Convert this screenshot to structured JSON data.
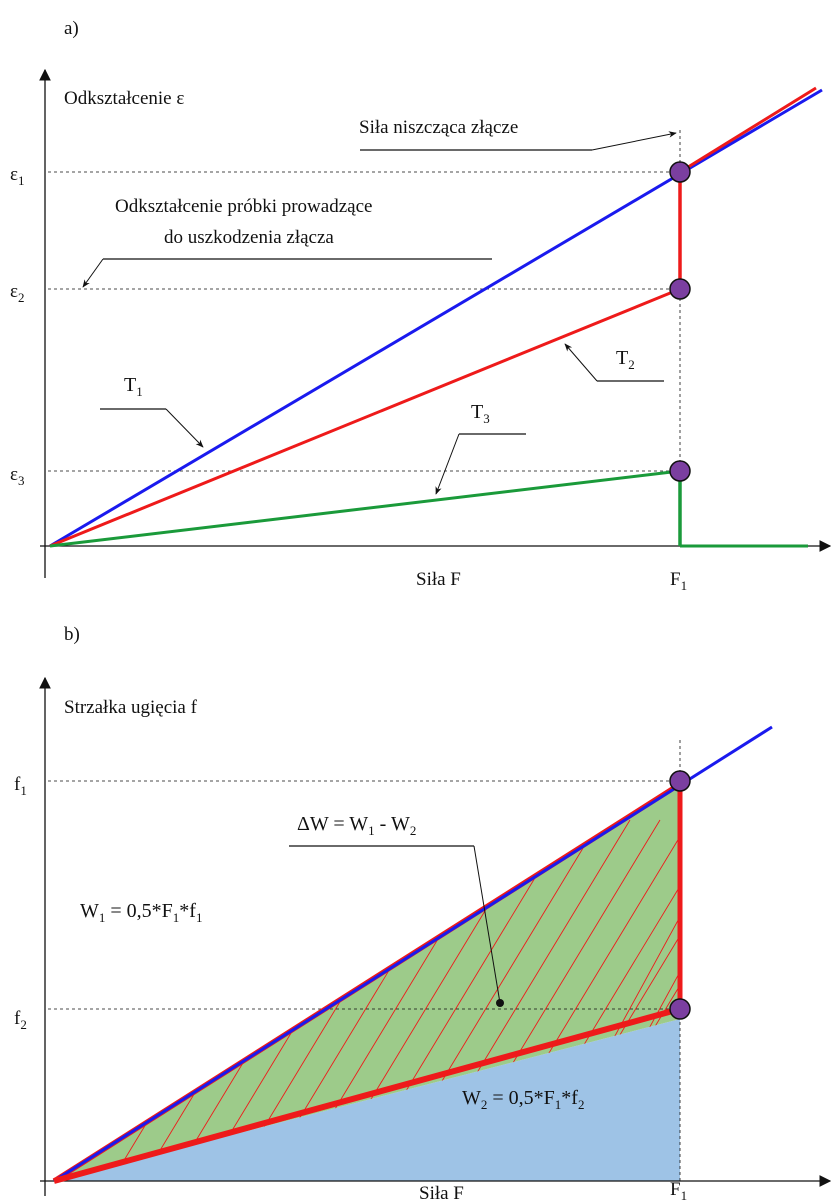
{
  "panel_a": {
    "label": "a)",
    "y_axis_label": "Odkształcenie ε",
    "x_axis_label": "Siła F",
    "x_tick": {
      "main": "F",
      "sub": "1"
    },
    "y_ticks": [
      {
        "main": "ε",
        "sub": "1"
      },
      {
        "main": "ε",
        "sub": "2"
      },
      {
        "main": "ε",
        "sub": "3"
      }
    ],
    "annotations": {
      "breaking_force": "Siła niszcząca złącze",
      "deformation_line1": "Odkształcenie próbki prowadzące",
      "deformation_line2": "do uszkodzenia złącza"
    },
    "series": [
      {
        "main": "T",
        "sub": "1",
        "color": "#1a1aee"
      },
      {
        "main": "T",
        "sub": "2",
        "color": "#ee1a1a"
      },
      {
        "main": "T",
        "sub": "3",
        "color": "#1a9a3a"
      }
    ],
    "marker_color": "#7b3fa0"
  },
  "panel_b": {
    "label": "b)",
    "y_axis_label": "Strzałka ugięcia f",
    "x_axis_label": "Siła F",
    "x_tick": {
      "main": "F",
      "sub": "1"
    },
    "y_ticks": [
      {
        "main": "f",
        "sub": "1"
      },
      {
        "main": "f",
        "sub": "2"
      }
    ],
    "delta_label": "ΔW = W",
    "delta_sub1": "1",
    "delta_mid": " - W",
    "delta_sub2": "2",
    "w1": {
      "a": "W",
      "a_sub": "1",
      "b": " = 0,5*F",
      "b_sub": "1",
      "c": "*f",
      "c_sub": "1"
    },
    "w2": {
      "a": "W",
      "a_sub": "2",
      "b": " = 0,5*F",
      "b_sub": "1",
      "c": "*f",
      "c_sub": "2"
    },
    "fill_green": "#9dcb8a",
    "fill_blue": "#9ec3e6"
  }
}
